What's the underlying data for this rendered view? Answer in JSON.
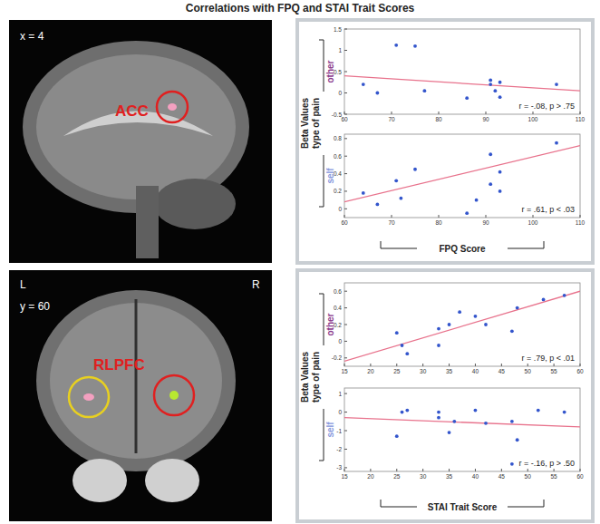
{
  "figure": {
    "title": "Correlations with FPQ and STAI Trait Scores",
    "panels": [
      {
        "brain": {
          "coord": "x = 4",
          "region": "ACC"
        },
        "y_label": "Beta Values",
        "y_sublabel": "type of pain",
        "x_label": "FPQ Score"
      },
      {
        "brain": {
          "coord": "y = 60",
          "region": "RLPFC",
          "left": "L",
          "right": "R"
        },
        "y_label": "Beta Values",
        "y_sublabel": "type of pain",
        "x_label": "STAI Trait Score"
      }
    ]
  },
  "chart_data": [
    {
      "type": "scatter",
      "y_label": "other",
      "annotation": "r = -.08, p > .75",
      "x": [
        64,
        67,
        71,
        75,
        77,
        86,
        91,
        91,
        92,
        93,
        93,
        105
      ],
      "values": [
        0.2,
        0.0,
        1.12,
        1.1,
        0.05,
        -0.12,
        0.3,
        0.2,
        0.05,
        0.25,
        -0.1,
        0.2
      ],
      "color": "#3355cc",
      "marker": "circle",
      "fit": {
        "x": [
          60,
          110
        ],
        "values": [
          0.4,
          0.05
        ],
        "color": "#e8728c"
      },
      "xlim": [
        60,
        110
      ],
      "xticks": [
        60,
        70,
        80,
        90,
        100,
        110
      ],
      "ylim": [
        -0.5,
        1.5
      ],
      "yticks": [
        -0.5,
        0,
        0.5,
        1,
        1.5
      ]
    },
    {
      "type": "scatter",
      "y_label": "self",
      "annotation": "r = .61, p < .03",
      "x": [
        64,
        67,
        71,
        72,
        75,
        86,
        88,
        91,
        91,
        93,
        93,
        105
      ],
      "values": [
        0.18,
        0.05,
        0.32,
        0.12,
        0.45,
        -0.05,
        0.1,
        0.62,
        0.28,
        0.42,
        0.2,
        0.75
      ],
      "color": "#3355cc",
      "marker": "circle",
      "fit": {
        "x": [
          60,
          110
        ],
        "values": [
          0.08,
          0.72
        ],
        "color": "#e8728c"
      },
      "xlim": [
        60,
        110
      ],
      "xticks": [
        60,
        70,
        80,
        90,
        100,
        110
      ],
      "ylim": [
        -0.1,
        0.85
      ],
      "yticks": [
        0,
        0.2,
        0.4,
        0.6,
        0.8
      ]
    },
    {
      "type": "scatter",
      "y_label": "other",
      "annotation": "r = .79, p < .01",
      "x": [
        25,
        26,
        27,
        33,
        33,
        35,
        37,
        40,
        42,
        47,
        48,
        53,
        57
      ],
      "values": [
        0.1,
        -0.05,
        -0.15,
        -0.05,
        0.15,
        0.2,
        0.35,
        0.3,
        0.2,
        0.12,
        0.4,
        0.5,
        0.55
      ],
      "color": "#3355cc",
      "marker": "circle",
      "fit": {
        "x": [
          15,
          60
        ],
        "values": [
          -0.24,
          0.6
        ],
        "color": "#e8728c"
      },
      "xlim": [
        15,
        60
      ],
      "xticks": [
        15,
        20,
        25,
        30,
        35,
        40,
        45,
        50,
        55,
        60
      ],
      "ylim": [
        -0.3,
        0.7
      ],
      "yticks": [
        -0.2,
        0,
        0.2,
        0.4,
        0.6
      ]
    },
    {
      "type": "scatter",
      "y_label": "self",
      "annotation": "r = -.16, p > .50",
      "x": [
        25,
        26,
        27,
        33,
        33,
        35,
        36,
        40,
        42,
        47,
        47,
        48,
        52,
        57
      ],
      "values": [
        -1.3,
        0.0,
        0.1,
        -0.3,
        0.0,
        -1.1,
        -0.5,
        0.1,
        -0.6,
        -0.5,
        -2.8,
        -1.5,
        0.1,
        0.0
      ],
      "color": "#3355cc",
      "marker": "circle",
      "fit": {
        "x": [
          15,
          60
        ],
        "values": [
          -0.3,
          -0.8
        ],
        "color": "#e8728c"
      },
      "xlim": [
        15,
        60
      ],
      "xticks": [
        15,
        20,
        25,
        30,
        35,
        40,
        45,
        50,
        55,
        60
      ],
      "ylim": [
        -3.2,
        1.3
      ],
      "yticks": [
        -3,
        -2,
        -1,
        0,
        1
      ]
    }
  ]
}
